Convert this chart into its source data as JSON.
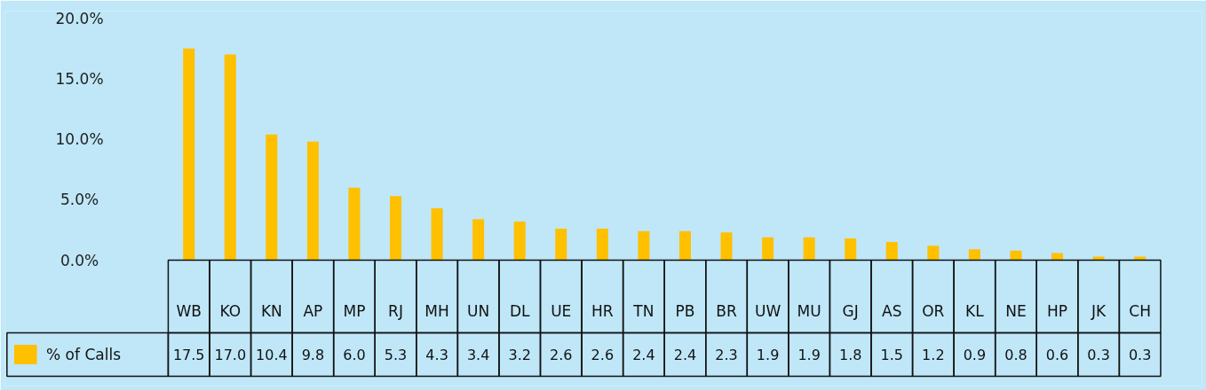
{
  "chart_data": {
    "type": "bar",
    "categories": [
      "WB",
      "KO",
      "KN",
      "AP",
      "MP",
      "RJ",
      "MH",
      "UN",
      "DL",
      "UE",
      "HR",
      "TN",
      "PB",
      "BR",
      "UW",
      "MU",
      "GJ",
      "AS",
      "OR",
      "KL",
      "NE",
      "HP",
      "JK",
      "CH"
    ],
    "series": [
      {
        "name": "% of Calls",
        "color": "#ffc000",
        "values": [
          17.5,
          17.0,
          10.4,
          9.8,
          6.0,
          5.3,
          4.3,
          3.4,
          3.2,
          2.6,
          2.6,
          2.4,
          2.4,
          2.3,
          1.9,
          1.9,
          1.8,
          1.5,
          1.2,
          0.9,
          0.8,
          0.6,
          0.3,
          0.3
        ],
        "value_labels": [
          "17.5",
          "17.0",
          "10.4",
          "9.8",
          "6.0",
          "5.3",
          "4.3",
          "3.4",
          "3.2",
          "2.6",
          "2.6",
          "2.4",
          "2.4",
          "2.3",
          "1.9",
          "1.9",
          "1.8",
          "1.5",
          "1.2",
          "0.9",
          "0.8",
          "0.6",
          "0.3",
          "0.3"
        ]
      }
    ],
    "ylim": [
      0,
      20
    ],
    "yticks": [
      {
        "value": 0,
        "label": "0.0%"
      },
      {
        "value": 5,
        "label": "5.0%"
      },
      {
        "value": 10,
        "label": "10.0%"
      },
      {
        "value": 15,
        "label": "15.0%"
      },
      {
        "value": 20,
        "label": "20.0%"
      }
    ],
    "grid": false,
    "legend": "bottom"
  }
}
